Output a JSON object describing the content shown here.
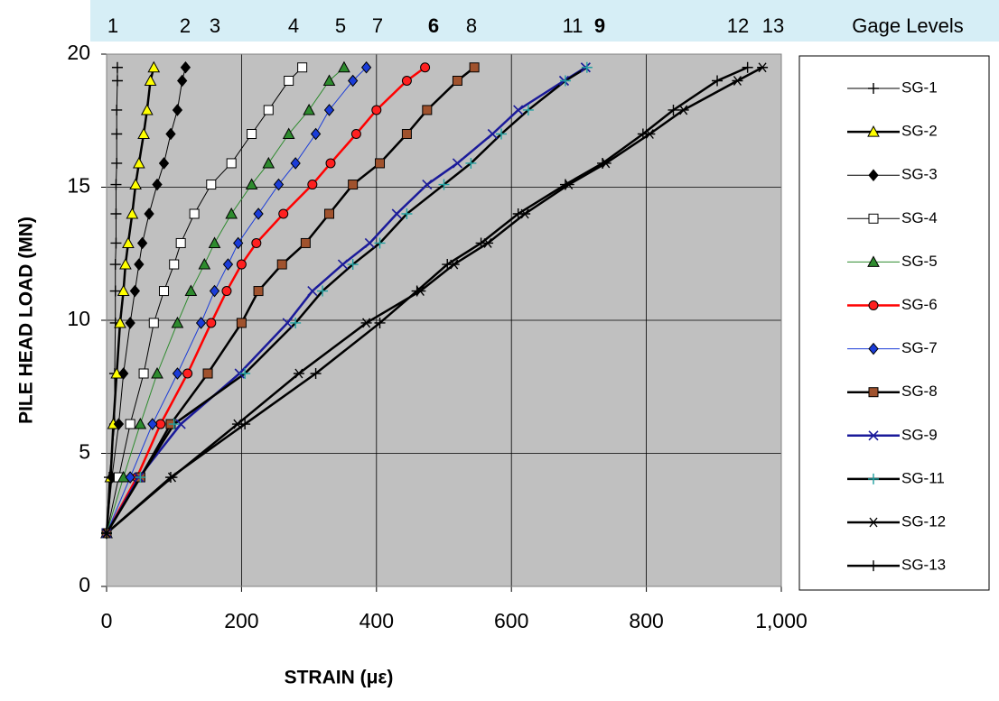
{
  "chart_data": {
    "type": "line",
    "x_label": "STRAIN  (με)",
    "y_label": "PILE HEAD LOAD  (MN)",
    "xlim": [
      0,
      1000
    ],
    "ylim": [
      0,
      20
    ],
    "xticks": [
      0,
      200,
      400,
      600,
      800,
      {
        "value": 1000,
        "label": "1,000"
      }
    ],
    "yticks": [
      0,
      5,
      10,
      15,
      20
    ],
    "grid": true,
    "plot_background": "#c0c0c0",
    "legend": "right",
    "gage_levels": {
      "title": "Gage Levels",
      "labels": [
        {
          "text": "1",
          "bold": false
        },
        {
          "text": "2",
          "bold": false
        },
        {
          "text": "3",
          "bold": false
        },
        {
          "text": "4",
          "bold": false
        },
        {
          "text": "5",
          "bold": false
        },
        {
          "text": "7",
          "bold": false
        },
        {
          "text": "6",
          "bold": true
        },
        {
          "text": "8",
          "bold": false
        },
        {
          "text": "11",
          "bold": false
        },
        {
          "text": "9",
          "bold": true
        },
        {
          "text": "12",
          "bold": false
        },
        {
          "text": "13",
          "bold": false
        }
      ]
    },
    "series": [
      {
        "name": "SG-1",
        "marker": "plus",
        "color": "#000000",
        "line_color": "#000000",
        "line_width": 1,
        "x": [
          0,
          4,
          12,
          12,
          13,
          13,
          13,
          14,
          14,
          14,
          15,
          15,
          15,
          16,
          16
        ],
        "values": [
          2.0,
          4.1,
          6.1,
          8.0,
          9.9,
          11.1,
          12.1,
          12.9,
          14.0,
          15.1,
          15.9,
          17.0,
          17.9,
          19.0,
          19.5
        ]
      },
      {
        "name": "SG-2",
        "marker": "triangle",
        "color": "#ffff00",
        "line_color": "#000000",
        "line_width": 2.5,
        "x": [
          0,
          6,
          10,
          15,
          20,
          25,
          28,
          32,
          38,
          43,
          48,
          55,
          60,
          65,
          70
        ],
        "values": [
          2.0,
          4.1,
          6.1,
          8.0,
          9.9,
          11.1,
          12.1,
          12.9,
          14.0,
          15.1,
          15.9,
          17.0,
          17.9,
          19.0,
          19.5
        ]
      },
      {
        "name": "SG-3",
        "marker": "diamond",
        "color": "#000000",
        "line_color": "#000000",
        "line_width": 1,
        "x": [
          0,
          8,
          18,
          25,
          35,
          42,
          48,
          53,
          63,
          75,
          85,
          95,
          105,
          112,
          117
        ],
        "values": [
          2.0,
          4.1,
          6.1,
          8.0,
          9.9,
          11.1,
          12.1,
          12.9,
          14.0,
          15.1,
          15.9,
          17.0,
          17.9,
          19.0,
          19.5
        ]
      },
      {
        "name": "SG-4",
        "marker": "square",
        "color": "#ffffff",
        "line_color": "#000000",
        "line_width": 1,
        "x": [
          0,
          18,
          35,
          55,
          70,
          85,
          100,
          110,
          130,
          155,
          185,
          215,
          240,
          270,
          290
        ],
        "values": [
          2.0,
          4.1,
          6.1,
          8.0,
          9.9,
          11.1,
          12.1,
          12.9,
          14.0,
          15.1,
          15.9,
          17.0,
          17.9,
          19.0,
          19.5
        ]
      },
      {
        "name": "SG-5",
        "marker": "triangle",
        "color": "#2e8b2e",
        "line_color": "#2e8b2e",
        "line_width": 1,
        "x": [
          0,
          25,
          50,
          75,
          105,
          125,
          145,
          160,
          185,
          215,
          240,
          270,
          300,
          330,
          352
        ],
        "values": [
          2.0,
          4.1,
          6.1,
          8.0,
          9.9,
          11.1,
          12.1,
          12.9,
          14.0,
          15.1,
          15.9,
          17.0,
          17.9,
          19.0,
          19.5
        ]
      },
      {
        "name": "SG-6",
        "marker": "circle",
        "color": "#ff2020",
        "line_color": "#ff0000",
        "line_width": 2.5,
        "x": [
          0,
          45,
          80,
          120,
          155,
          178,
          200,
          222,
          262,
          305,
          332,
          370,
          400,
          445,
          472
        ],
        "values": [
          2.0,
          4.1,
          6.1,
          8.0,
          9.9,
          11.1,
          12.1,
          12.9,
          14.0,
          15.1,
          15.9,
          17.0,
          17.9,
          19.0,
          19.5
        ]
      },
      {
        "name": "SG-7",
        "marker": "diamond",
        "color": "#1a3cd8",
        "line_color": "#1a3cd8",
        "line_width": 1,
        "x": [
          0,
          35,
          68,
          105,
          140,
          160,
          180,
          195,
          225,
          255,
          280,
          310,
          330,
          365,
          385
        ],
        "values": [
          2.0,
          4.1,
          6.1,
          8.0,
          9.9,
          11.1,
          12.1,
          12.9,
          14.0,
          15.1,
          15.9,
          17.0,
          17.9,
          19.0,
          19.5
        ]
      },
      {
        "name": "SG-8",
        "marker": "square",
        "color": "#a0522d",
        "line_color": "#000000",
        "line_width": 2.5,
        "x": [
          0,
          50,
          95,
          150,
          200,
          225,
          260,
          295,
          330,
          365,
          405,
          445,
          475,
          520,
          545
        ],
        "values": [
          2.0,
          4.1,
          6.1,
          8.0,
          9.9,
          11.1,
          12.1,
          12.9,
          14.0,
          15.1,
          15.9,
          17.0,
          17.9,
          19.0,
          19.5
        ]
      },
      {
        "name": "SG-9",
        "marker": "x",
        "color": "#1a1a9a",
        "line_color": "#1a1a9a",
        "line_width": 2.5,
        "x": [
          0,
          48,
          110,
          197,
          268,
          305,
          350,
          390,
          430,
          475,
          520,
          572,
          610,
          678,
          710
        ],
        "values": [
          2.0,
          4.1,
          6.1,
          8.0,
          9.9,
          11.1,
          12.1,
          12.9,
          14.0,
          15.1,
          15.9,
          17.0,
          17.9,
          19.0,
          19.5
        ]
      },
      {
        "name": "SG-11",
        "marker": "plus",
        "color": "#20a0a0",
        "line_color": "#000000",
        "line_width": 2.5,
        "x": [
          0,
          50,
          100,
          205,
          280,
          320,
          365,
          405,
          445,
          500,
          540,
          585,
          625,
          680,
          712
        ],
        "values": [
          2.0,
          4.1,
          6.1,
          8.0,
          9.9,
          11.1,
          12.1,
          12.9,
          14.0,
          15.1,
          15.9,
          17.0,
          17.9,
          19.0,
          19.5
        ]
      },
      {
        "name": "SG-12",
        "marker": "star",
        "color": "#000000",
        "line_color": "#000000",
        "line_width": 2.5,
        "x": [
          0,
          97,
          194,
          285,
          385,
          465,
          515,
          565,
          620,
          685,
          740,
          805,
          855,
          935,
          972
        ],
        "values": [
          2.0,
          4.1,
          6.1,
          8.0,
          9.9,
          11.1,
          12.1,
          12.9,
          14.0,
          15.1,
          15.9,
          17.0,
          17.9,
          19.0,
          19.5
        ]
      },
      {
        "name": "SG-13",
        "marker": "plus",
        "color": "#000000",
        "line_color": "#000000",
        "line_width": 2.5,
        "x": [
          0,
          95,
          205,
          310,
          405,
          460,
          505,
          555,
          610,
          680,
          735,
          795,
          840,
          905,
          950
        ],
        "values": [
          2.0,
          4.1,
          6.1,
          8.0,
          9.9,
          11.1,
          12.1,
          12.9,
          14.0,
          15.1,
          15.9,
          17.0,
          17.9,
          19.0,
          19.5
        ]
      }
    ]
  }
}
